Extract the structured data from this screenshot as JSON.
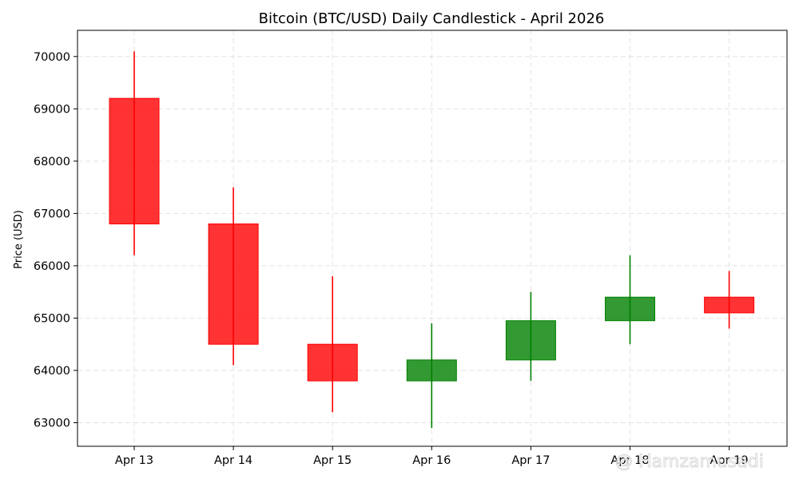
{
  "chart_data": {
    "type": "candlestick",
    "title": "Bitcoin (BTC/USD) Daily Candlestick - April 2026",
    "xlabel": "",
    "ylabel": "Price (USD)",
    "ylim": [
      62550,
      70500
    ],
    "yticks": [
      63000,
      64000,
      65000,
      66000,
      67000,
      68000,
      69000,
      70000
    ],
    "grid": true,
    "colors": {
      "up": "#008000",
      "down": "#ff0000"
    },
    "categories": [
      "Apr 13",
      "Apr 14",
      "Apr 15",
      "Apr 16",
      "Apr 17",
      "Apr 18",
      "Apr 19"
    ],
    "candles": [
      {
        "date": "Apr 13",
        "open": 69200,
        "high": 70100,
        "low": 66200,
        "close": 66800
      },
      {
        "date": "Apr 14",
        "open": 66800,
        "high": 67500,
        "low": 64100,
        "close": 64500
      },
      {
        "date": "Apr 15",
        "open": 64500,
        "high": 65800,
        "low": 63200,
        "close": 63800
      },
      {
        "date": "Apr 16",
        "open": 63800,
        "high": 64900,
        "low": 62900,
        "close": 64200
      },
      {
        "date": "Apr 17",
        "open": 64200,
        "high": 65500,
        "low": 63800,
        "close": 64950
      },
      {
        "date": "Apr 18",
        "open": 64950,
        "high": 66200,
        "low": 64500,
        "close": 65400
      },
      {
        "date": "Apr 19",
        "open": 65400,
        "high": 65900,
        "low": 64800,
        "close": 65100
      }
    ]
  },
  "watermark": {
    "text": "@ Hamzamusadi"
  }
}
